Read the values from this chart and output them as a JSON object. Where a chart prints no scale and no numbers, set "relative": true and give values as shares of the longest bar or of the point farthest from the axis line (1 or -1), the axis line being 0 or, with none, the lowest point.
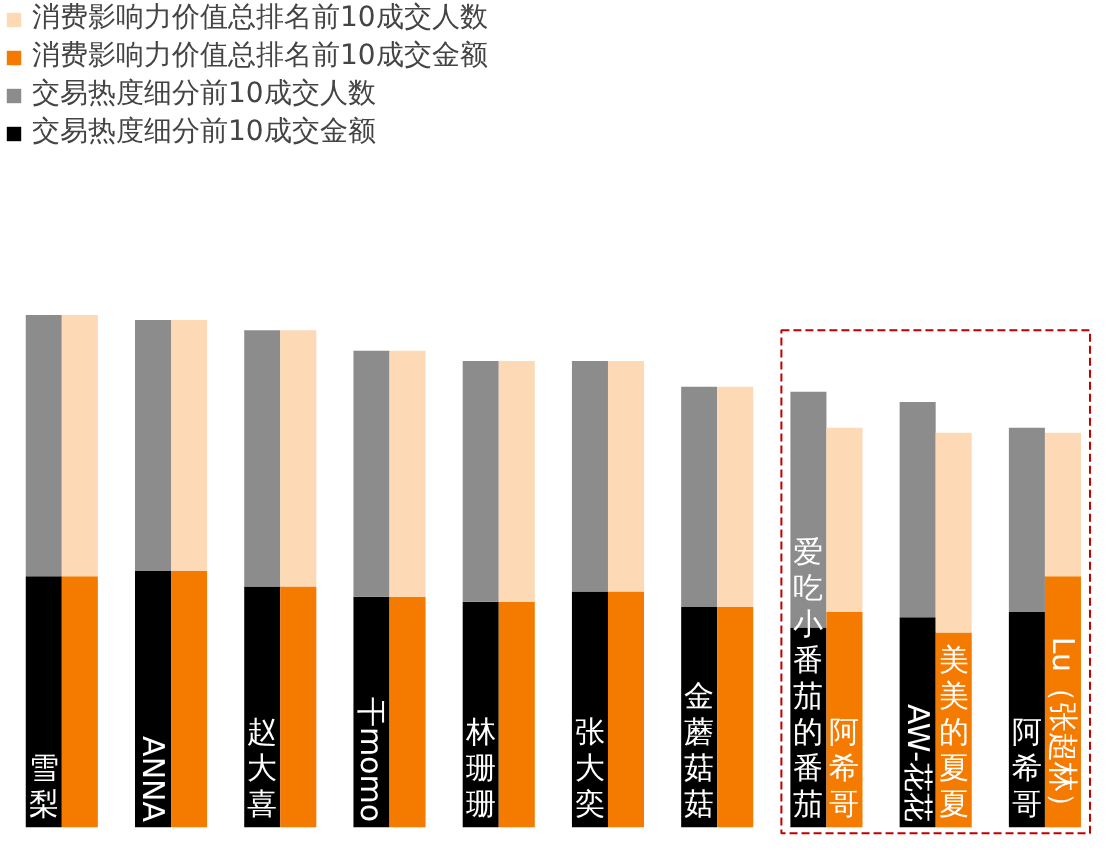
{
  "chart_data": {
    "type": "bar",
    "stacked": true,
    "relative": true,
    "categories": [
      "雪梨",
      null,
      "ANNA",
      null,
      "赵大喜",
      null,
      "干momo",
      null,
      "林珊珊",
      null,
      "张大奕",
      null,
      "金蘑菇菇",
      null,
      "爱吃小番茄的番茄",
      "阿希哥",
      "AW-花花",
      "美美的夏夏",
      "阿希哥",
      "Lu（张超林）"
    ],
    "series": [
      {
        "name": "交易热度细分前10成交金额",
        "color": "#000000",
        "values": [
          0.49,
          null,
          0.5,
          null,
          0.47,
          null,
          0.45,
          null,
          0.44,
          null,
          0.46,
          null,
          0.43,
          null,
          0.39,
          null,
          0.41,
          null,
          0.42,
          null
        ]
      },
      {
        "name": "交易热度细分前10成交人数",
        "color": "#8c8c8c",
        "values": [
          0.51,
          null,
          0.49,
          null,
          0.5,
          null,
          0.48,
          null,
          0.47,
          null,
          0.45,
          null,
          0.43,
          null,
          0.46,
          null,
          0.42,
          null,
          0.36,
          null
        ]
      },
      {
        "name": "消费影响力价值总排名前10成交金额",
        "color": "#f47b00",
        "values": [
          null,
          0.49,
          null,
          0.5,
          null,
          0.47,
          null,
          0.45,
          null,
          0.44,
          null,
          0.46,
          null,
          0.43,
          null,
          0.42,
          null,
          0.38,
          null,
          0.49
        ]
      },
      {
        "name": "消费影响力价值总排名前10成交人数",
        "color": "#fdd9b5",
        "values": [
          null,
          0.51,
          null,
          0.49,
          null,
          0.5,
          null,
          0.48,
          null,
          0.47,
          null,
          0.45,
          null,
          0.43,
          null,
          0.36,
          null,
          0.39,
          null,
          0.28
        ]
      }
    ],
    "legend": "top left"
  }
}
